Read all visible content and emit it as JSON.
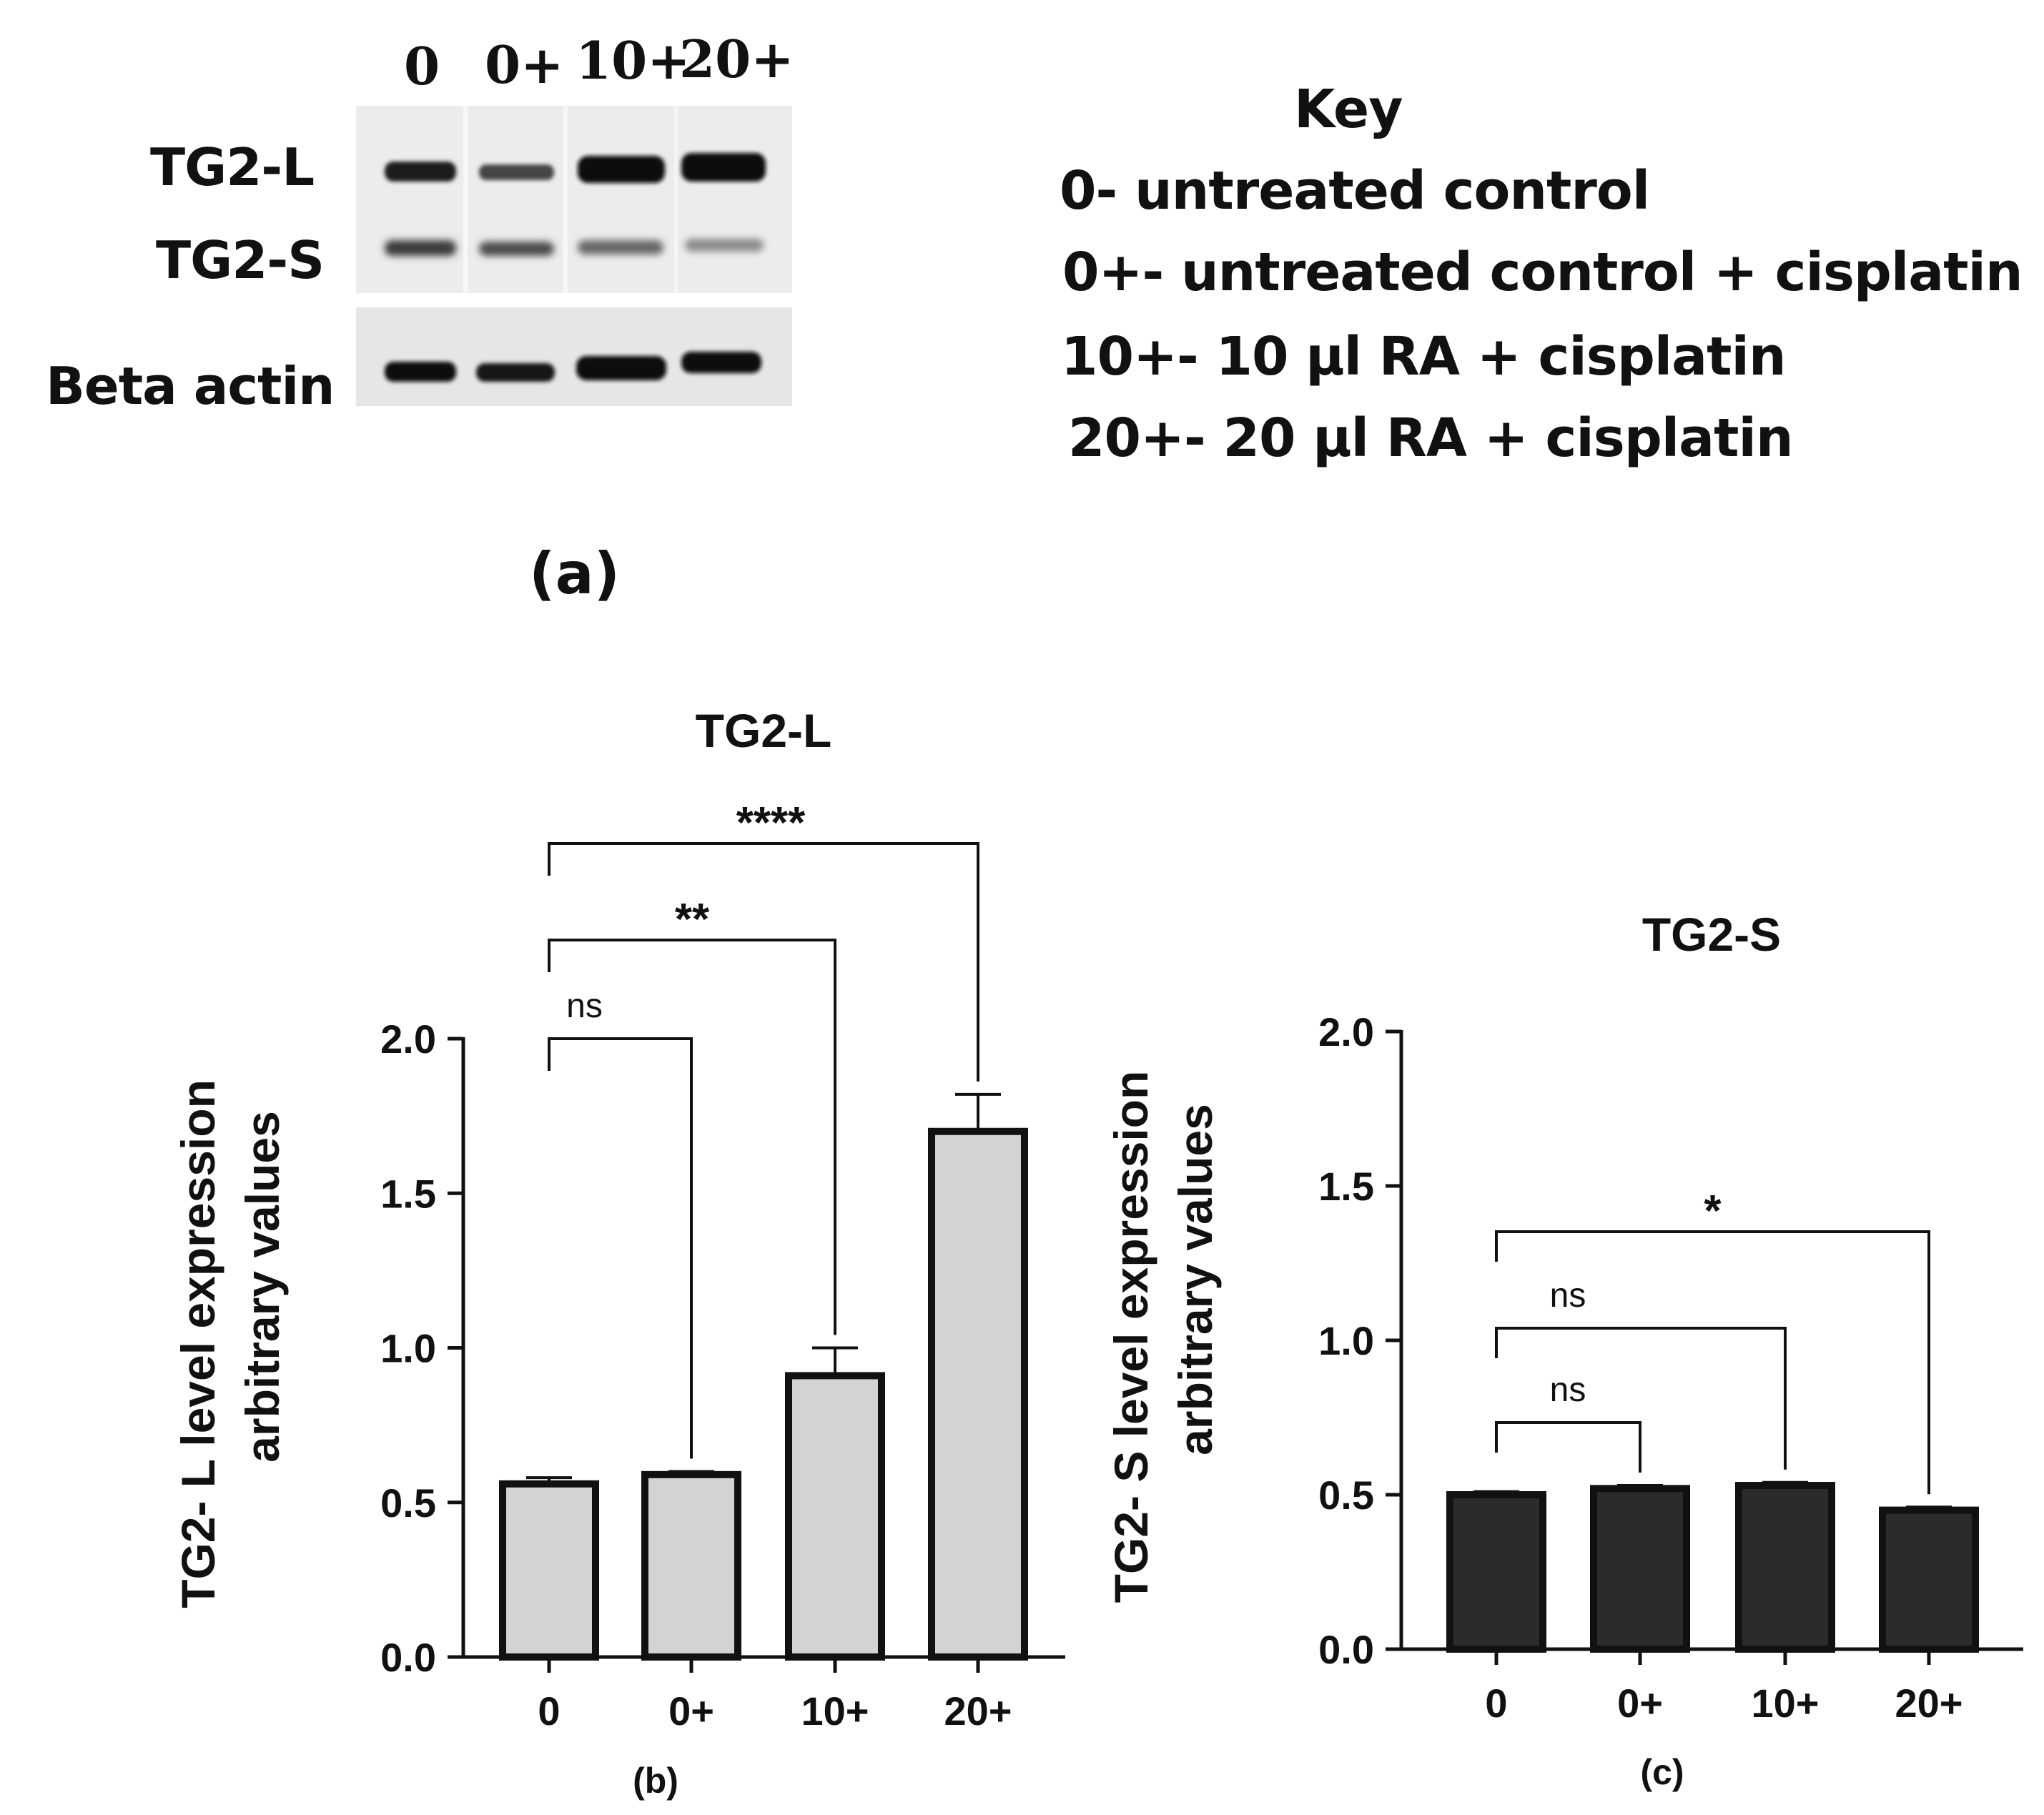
{
  "panel_a": {
    "lanes": [
      "0",
      "0+",
      "10+",
      "20+"
    ],
    "rows": [
      "TG2-L",
      "TG2-S",
      "Beta actin"
    ],
    "key_title": "Key",
    "key_items": [
      "0- untreated control",
      "0+- untreated control + cisplatin",
      "10+- 10 µl RA + cisplatin",
      "20+- 20 µl RA + cisplatin"
    ],
    "caption": "(a)"
  },
  "colors": {
    "bar_b": "#d3d3d3",
    "bar_c": "#2b2b2b",
    "ink": "#111111"
  },
  "chart_data": [
    {
      "type": "bar",
      "panel": "(b)",
      "title": "TG2-L",
      "xlabel": "",
      "ylabel_line1": "TG2- L level expression",
      "ylabel_line2": "arbitrary values",
      "categories": [
        "0",
        "0+",
        "10+",
        "20+"
      ],
      "values": [
        0.56,
        0.59,
        0.91,
        1.7
      ],
      "errors": [
        0.02,
        0.01,
        0.09,
        0.12
      ],
      "ylim": [
        0,
        2.0
      ],
      "yticks": [
        "0.0",
        "0.5",
        "1.0",
        "1.5",
        "2.0"
      ],
      "grid": false,
      "significance": [
        {
          "from": "0",
          "to": "0+",
          "label": "ns"
        },
        {
          "from": "0",
          "to": "10+",
          "label": "**"
        },
        {
          "from": "0",
          "to": "20+",
          "label": "****"
        }
      ]
    },
    {
      "type": "bar",
      "panel": "(c)",
      "title": "TG2-S",
      "xlabel": "",
      "ylabel_line1": "TG2- S level expression",
      "ylabel_line2": "arbitrary values",
      "categories": [
        "0",
        "0+",
        "10+",
        "20+"
      ],
      "values": [
        0.5,
        0.52,
        0.53,
        0.45
      ],
      "errors": [
        0.01,
        0.01,
        0.01,
        0.01
      ],
      "ylim": [
        0,
        2.0
      ],
      "yticks": [
        "0.0",
        "0.5",
        "1.0",
        "1.5",
        "2.0"
      ],
      "grid": false,
      "significance": [
        {
          "from": "0",
          "to": "0+",
          "label": "ns"
        },
        {
          "from": "0",
          "to": "10+",
          "label": "ns"
        },
        {
          "from": "0",
          "to": "20+",
          "label": "*"
        }
      ]
    }
  ]
}
